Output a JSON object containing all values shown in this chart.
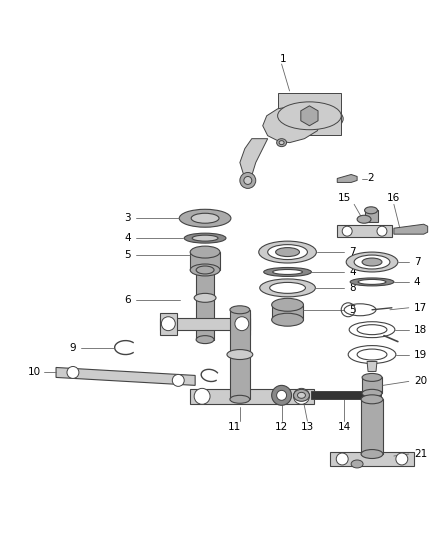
{
  "background_color": "#ffffff",
  "line_color": "#444444",
  "gray_light": "#cccccc",
  "gray_mid": "#aaaaaa",
  "gray_dark": "#888888",
  "black_part": "#333333",
  "figsize": [
    4.38,
    5.33
  ],
  "dpi": 100
}
